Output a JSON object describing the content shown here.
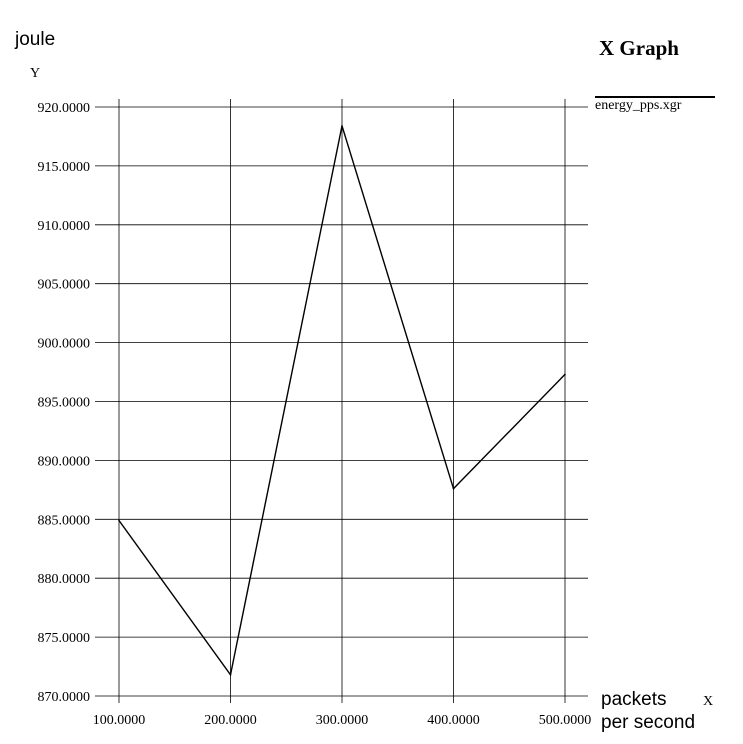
{
  "chart_data": {
    "type": "line",
    "title": "X Graph",
    "ylabel": "joule",
    "y_axis_name": "Y",
    "xlabel_lines": [
      "packets",
      "per second"
    ],
    "x_axis_name": "X",
    "legend": "energy_pps.xgr",
    "legend_position": "top-right",
    "grid": true,
    "x_ticks": [
      "100.0000",
      "200.0000",
      "300.0000",
      "400.0000",
      "500.0000"
    ],
    "y_ticks": [
      "870.0000",
      "875.0000",
      "880.0000",
      "885.0000",
      "890.0000",
      "895.0000",
      "900.0000",
      "905.0000",
      "910.0000",
      "915.0000",
      "920.0000"
    ],
    "xlim": [
      100,
      500
    ],
    "ylim": [
      870,
      920
    ],
    "series": [
      {
        "name": "energy_pps.xgr",
        "x": [
          100,
          200,
          300,
          400,
          500
        ],
        "y": [
          884.9,
          871.8,
          918.4,
          887.6,
          897.3
        ]
      }
    ],
    "colors": {
      "line": "#000000",
      "grid": "#000000",
      "background": "#ffffff"
    }
  }
}
